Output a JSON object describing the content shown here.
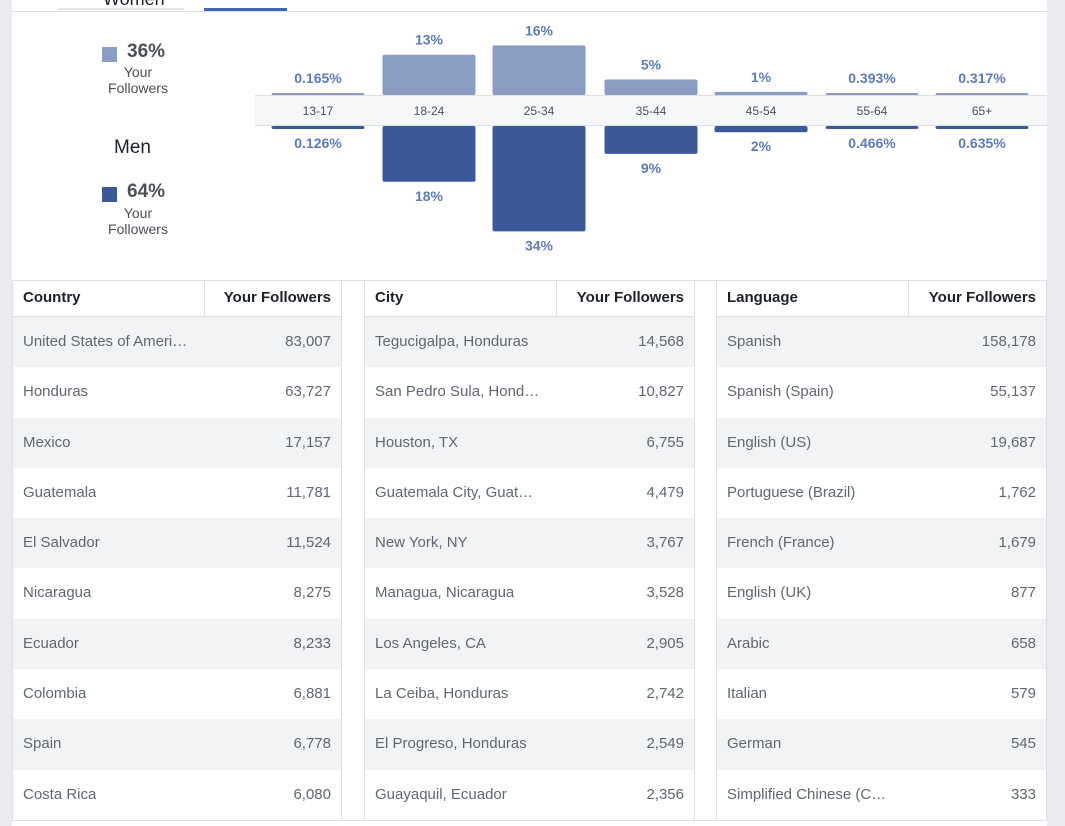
{
  "header": {
    "women_label": "Women"
  },
  "gender": {
    "women": {
      "percent": "36%",
      "sublabel_1": "Your",
      "sublabel_2": "Followers",
      "color": "#8b9dc3"
    },
    "men": {
      "label": "Men",
      "percent": "64%",
      "sublabel_1": "Your",
      "sublabel_2": "Followers",
      "color": "#3b5998"
    }
  },
  "chart_data": {
    "type": "bar",
    "categories": [
      "13-17",
      "18-24",
      "25-34",
      "35-44",
      "45-54",
      "55-64",
      "65+"
    ],
    "series": [
      {
        "name": "Women",
        "values": [
          0.165,
          13,
          16,
          5,
          1,
          0.393,
          0.317
        ],
        "labels": [
          "0.165%",
          "13%",
          "16%",
          "5%",
          "1%",
          "0.393%",
          "0.317%"
        ],
        "color": "#8b9dc3"
      },
      {
        "name": "Men",
        "values": [
          0.126,
          18,
          34,
          9,
          2,
          0.466,
          0.635
        ],
        "labels": [
          "0.126%",
          "18%",
          "34%",
          "9%",
          "2%",
          "0.466%",
          "0.635%"
        ],
        "color": "#3b5998"
      }
    ],
    "ylim": [
      0,
      34
    ],
    "label_color": "#5f7ab5"
  },
  "tables": [
    {
      "col1": "Country",
      "col2": "Your Followers",
      "rows": [
        [
          "United States of America",
          "83,007"
        ],
        [
          "Honduras",
          "63,727"
        ],
        [
          "Mexico",
          "17,157"
        ],
        [
          "Guatemala",
          "11,781"
        ],
        [
          "El Salvador",
          "11,524"
        ],
        [
          "Nicaragua",
          "8,275"
        ],
        [
          "Ecuador",
          "8,233"
        ],
        [
          "Colombia",
          "6,881"
        ],
        [
          "Spain",
          "6,778"
        ],
        [
          "Costa Rica",
          "6,080"
        ]
      ]
    },
    {
      "col1": "City",
      "col2": "Your Followers",
      "rows": [
        [
          "Tegucigalpa, Honduras",
          "14,568"
        ],
        [
          "San Pedro Sula, Hond…",
          "10,827"
        ],
        [
          "Houston, TX",
          "6,755"
        ],
        [
          "Guatemala City, Guate…",
          "4,479"
        ],
        [
          "New York, NY",
          "3,767"
        ],
        [
          "Managua, Nicaragua",
          "3,528"
        ],
        [
          "Los Angeles, CA",
          "2,905"
        ],
        [
          "La Ceiba, Honduras",
          "2,742"
        ],
        [
          "El Progreso, Honduras",
          "2,549"
        ],
        [
          "Guayaquil, Ecuador",
          "2,356"
        ]
      ]
    },
    {
      "col1": "Language",
      "col2": "Your Followers",
      "rows": [
        [
          "Spanish",
          "158,178"
        ],
        [
          "Spanish (Spain)",
          "55,137"
        ],
        [
          "English (US)",
          "19,687"
        ],
        [
          "Portuguese (Brazil)",
          "1,762"
        ],
        [
          "French (France)",
          "1,679"
        ],
        [
          "English (UK)",
          "877"
        ],
        [
          "Arabic",
          "658"
        ],
        [
          "Italian",
          "579"
        ],
        [
          "German",
          "545"
        ],
        [
          "Simplified Chinese (Chi…",
          "333"
        ]
      ]
    }
  ]
}
